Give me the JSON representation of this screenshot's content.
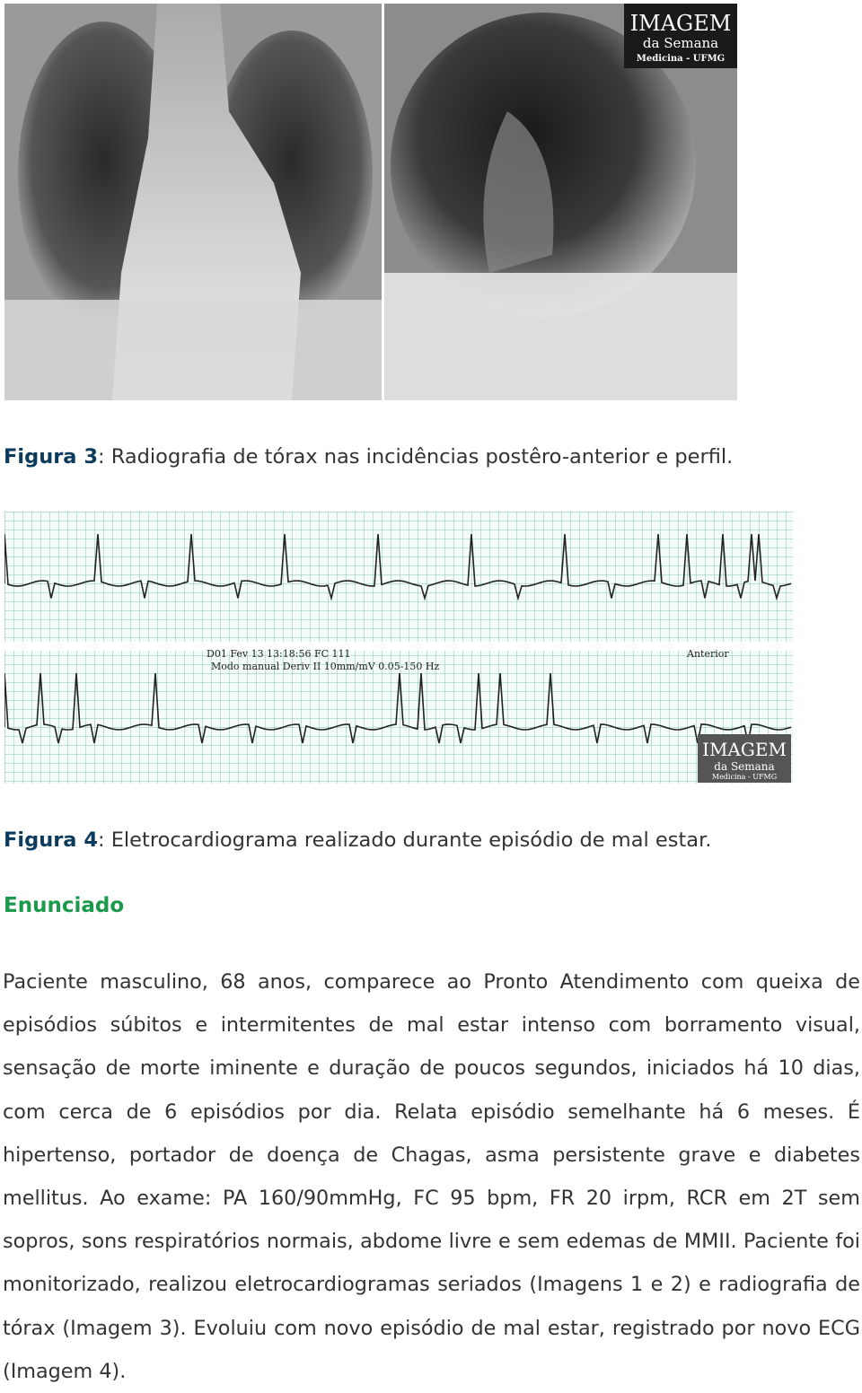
{
  "figure3": {
    "label": "Figura 3",
    "caption": ": Radiografia de tórax nas incidências postêro-anterior e perfil.",
    "watermark": {
      "title": "IMAGEM",
      "subtitle": "da Semana",
      "org": "Medicina - UFMG"
    }
  },
  "figure4": {
    "label": "Figura 4",
    "caption": ": Eletrocardiograma realizado durante episódio de mal estar.",
    "ecg_header": {
      "line1": "D01 Fev 13  13:18:56  FC 111",
      "line2": "Modo manual  Deriv II  10mm/mV  0.05-150 Hz",
      "marker": "Anterior"
    },
    "watermark": {
      "title": "IMAGEM",
      "subtitle": "da Semana",
      "org": "Medicina - UFMG"
    }
  },
  "section": {
    "heading": "Enunciado",
    "paragraph": "Paciente masculino, 68 anos, comparece ao Pronto Atendimento com queixa de episódios súbitos e intermitentes de mal estar intenso com borramento visual, sensação de morte iminente e duração de poucos segundos, iniciados há 10 dias, com cerca de 6 episódios por dia. Relata episódio semelhante há 6 meses. É hipertenso, portador de doença de Chagas, asma persistente grave e diabetes mellitus. Ao exame: PA 160/90mmHg, FC 95 bpm, FR 20 irpm, RCR em 2T sem sopros, sons respiratórios normais, abdome livre e sem edemas de MMII. Paciente foi monitorizado, realizou eletrocardiogramas seriados (Imagens 1 e 2) e radiografia de tórax (Imagem 3). Evoluiu com novo episódio de mal estar, registrado por novo ECG (Imagem 4)."
  }
}
